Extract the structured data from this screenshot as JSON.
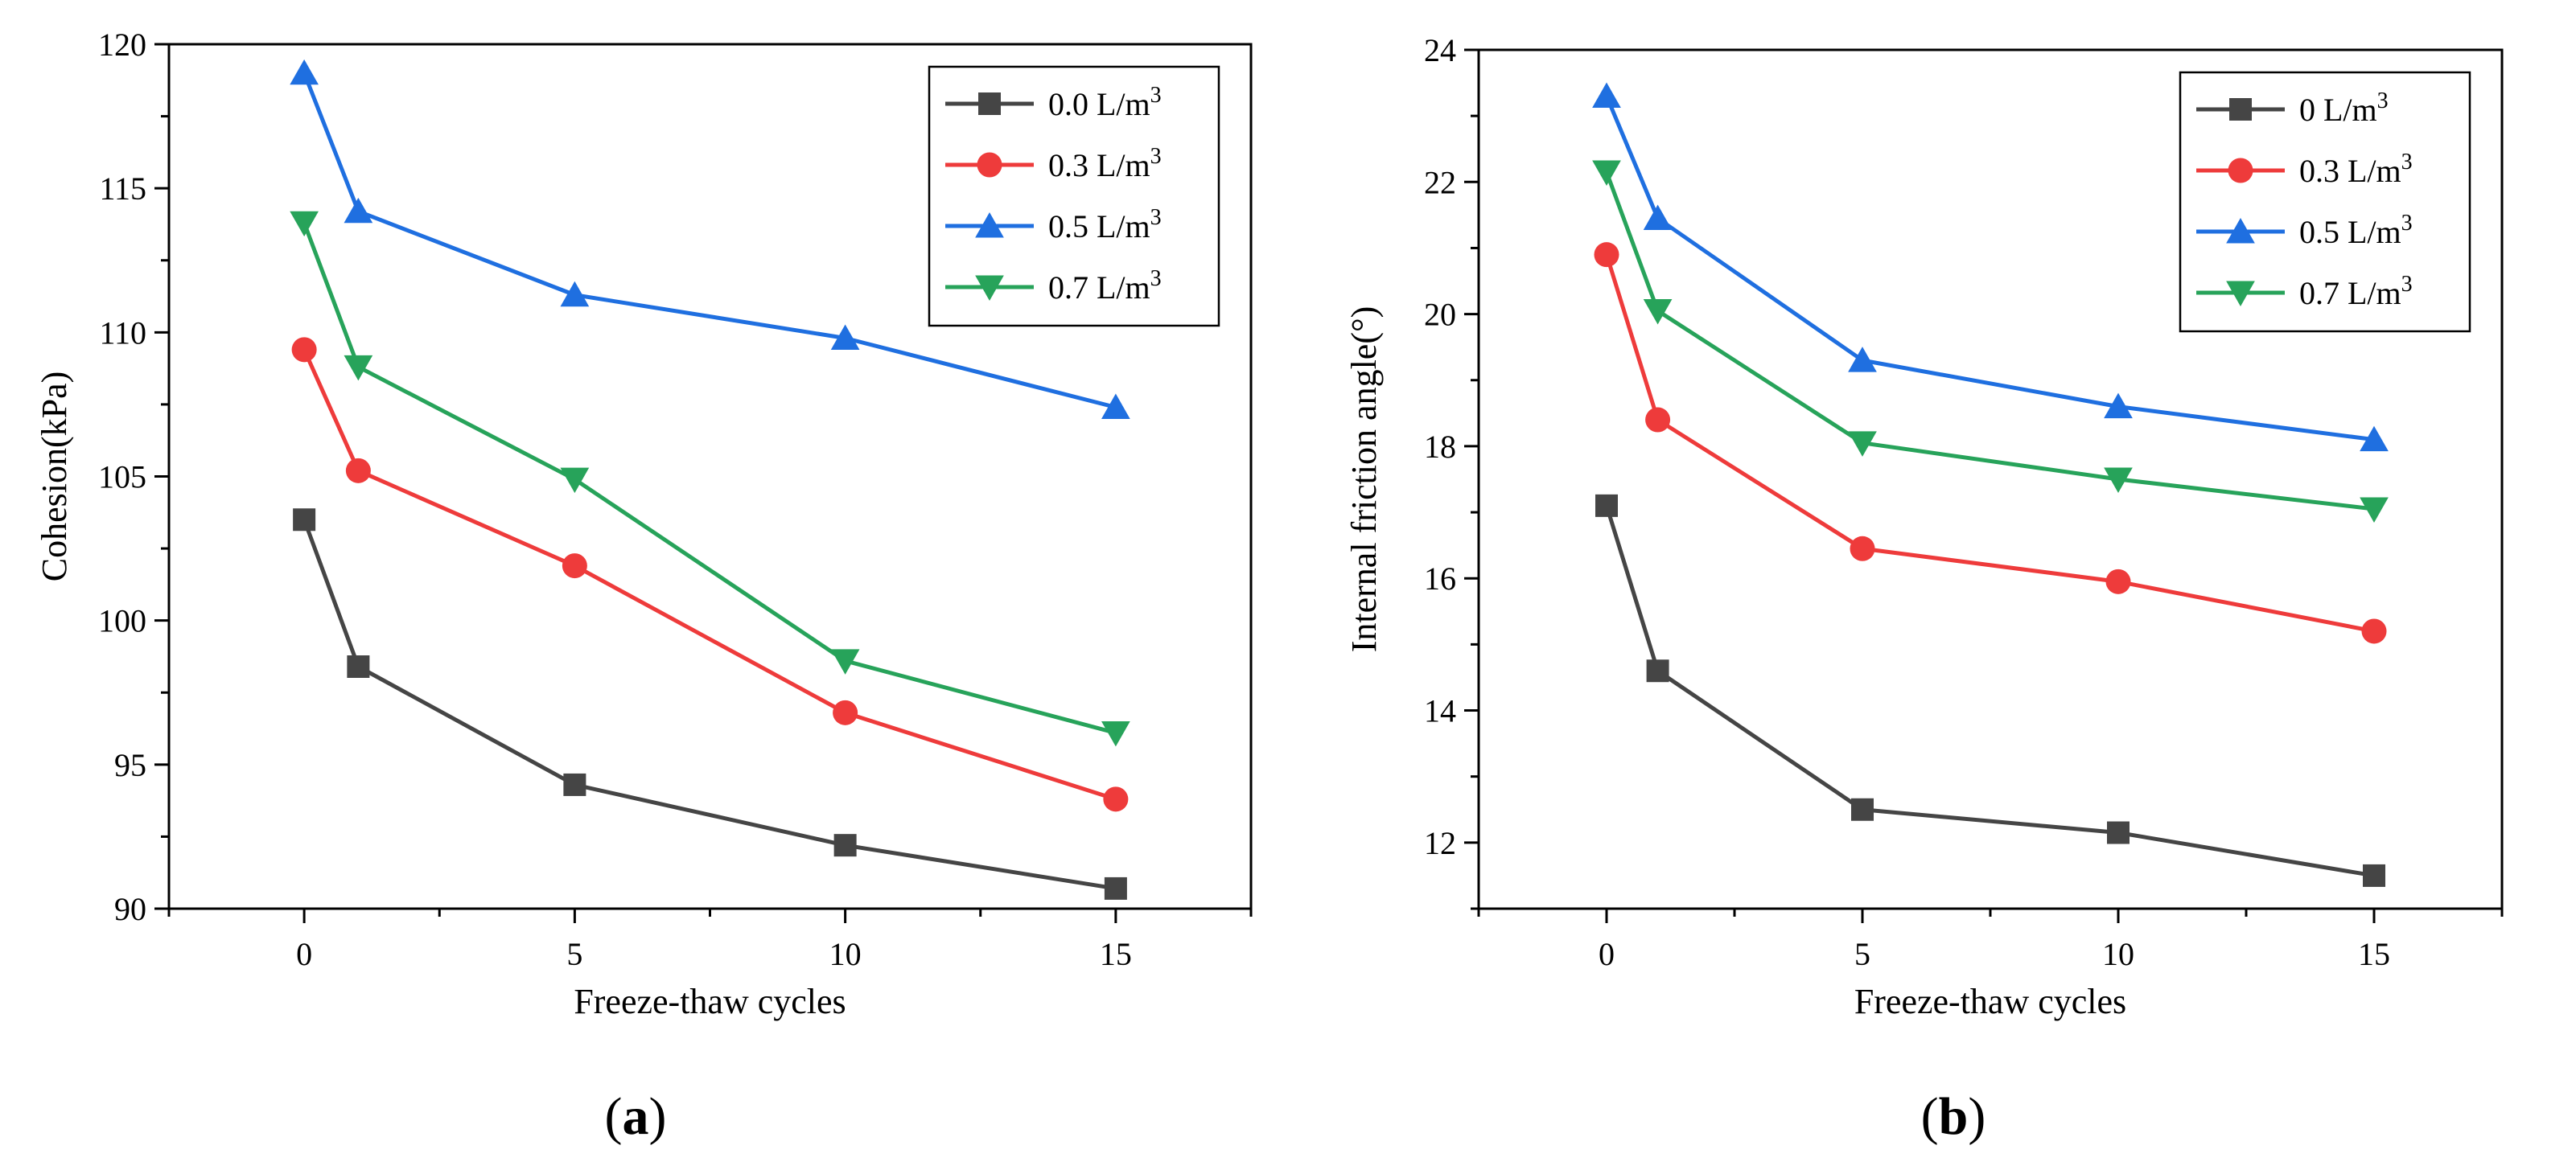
{
  "chart_data": [
    {
      "type": "line",
      "panel_label": "a",
      "xlabel": "Freeze-thaw cycles",
      "ylabel": "Cohesion(kPa)",
      "x": [
        0,
        1,
        5,
        10,
        15
      ],
      "xlim": [
        -2.5,
        17.5
      ],
      "ylim": [
        90,
        120
      ],
      "xticks": [
        0,
        5,
        10,
        15
      ],
      "yticks": [
        90,
        95,
        100,
        105,
        110,
        115,
        120
      ],
      "legend_position": "top-right",
      "series": [
        {
          "name": "0.0 L/m",
          "sup": "3",
          "marker": "square",
          "color": "#454545",
          "values": [
            103.5,
            98.4,
            94.3,
            92.2,
            90.7
          ]
        },
        {
          "name": "0.3 L/m",
          "sup": "3",
          "marker": "circle",
          "color": "#ee3b3b",
          "values": [
            109.4,
            105.2,
            101.9,
            96.8,
            93.8
          ]
        },
        {
          "name": "0.5 L/m",
          "sup": "3",
          "marker": "triangle-up",
          "color": "#1f6fe0",
          "values": [
            119.0,
            114.2,
            111.3,
            109.8,
            107.4
          ]
        },
        {
          "name": "0.7 L/m",
          "sup": "3",
          "marker": "triangle-down",
          "color": "#27a35a",
          "values": [
            113.8,
            108.8,
            104.9,
            98.6,
            96.1
          ]
        }
      ]
    },
    {
      "type": "line",
      "panel_label": "b",
      "xlabel": "Freeze-thaw cycles",
      "ylabel": "Internal friction angle(°)",
      "x": [
        0,
        1,
        5,
        10,
        15
      ],
      "xlim": [
        -2.5,
        17.5
      ],
      "ylim": [
        11,
        24
      ],
      "xticks": [
        0,
        5,
        10,
        15
      ],
      "yticks": [
        12,
        14,
        16,
        18,
        20,
        22,
        24
      ],
      "legend_position": "top-right",
      "series": [
        {
          "name": "0 L/m",
          "sup": "3",
          "marker": "square",
          "color": "#454545",
          "values": [
            17.1,
            14.6,
            12.5,
            12.15,
            11.5
          ]
        },
        {
          "name": "0.3 L/m",
          "sup": "3",
          "marker": "circle",
          "color": "#ee3b3b",
          "values": [
            20.9,
            18.4,
            16.45,
            15.95,
            15.2
          ]
        },
        {
          "name": "0.5 L/m",
          "sup": "3",
          "marker": "triangle-up",
          "color": "#1f6fe0",
          "values": [
            23.3,
            21.45,
            19.3,
            18.6,
            18.1
          ]
        },
        {
          "name": "0.7 L/m",
          "sup": "3",
          "marker": "triangle-down",
          "color": "#27a35a",
          "values": [
            22.15,
            20.05,
            18.05,
            17.5,
            17.05
          ]
        }
      ]
    }
  ]
}
